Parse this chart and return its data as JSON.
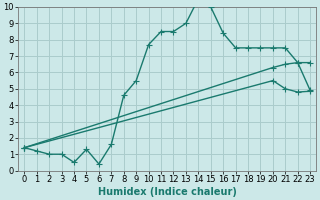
{
  "xlabel": "Humidex (Indice chaleur)",
  "background_color": "#cce8e8",
  "grid_color": "#aacccc",
  "line_color": "#1a7a6e",
  "xlim": [
    -0.5,
    23.5
  ],
  "ylim": [
    0,
    10
  ],
  "xticks": [
    0,
    1,
    2,
    3,
    4,
    5,
    6,
    7,
    8,
    9,
    10,
    11,
    12,
    13,
    14,
    15,
    16,
    17,
    18,
    19,
    20,
    21,
    22,
    23
  ],
  "yticks": [
    0,
    1,
    2,
    3,
    4,
    5,
    6,
    7,
    8,
    9,
    10
  ],
  "line1_x": [
    0,
    1,
    2,
    3,
    4,
    5,
    6,
    7,
    8,
    9,
    10,
    11,
    12,
    13,
    14,
    15,
    16,
    17,
    18,
    19,
    20,
    21,
    22,
    23
  ],
  "line1_y": [
    1.4,
    1.2,
    1.0,
    1.0,
    0.5,
    1.3,
    0.4,
    1.6,
    4.6,
    5.5,
    7.7,
    8.5,
    8.5,
    9.0,
    10.5,
    10.0,
    8.4,
    7.5,
    7.5,
    7.5,
    7.5,
    7.5,
    6.6,
    4.9
  ],
  "line2_x": [
    0,
    20,
    21,
    22,
    23
  ],
  "line2_y": [
    1.4,
    6.3,
    6.5,
    6.6,
    6.6
  ],
  "line3_x": [
    0,
    20,
    21,
    22,
    23
  ],
  "line3_y": [
    1.4,
    5.5,
    5.0,
    4.8,
    4.85
  ],
  "marker": "+",
  "marker_size": 4,
  "line_width": 1.0,
  "tick_fontsize": 6,
  "xlabel_fontsize": 7
}
